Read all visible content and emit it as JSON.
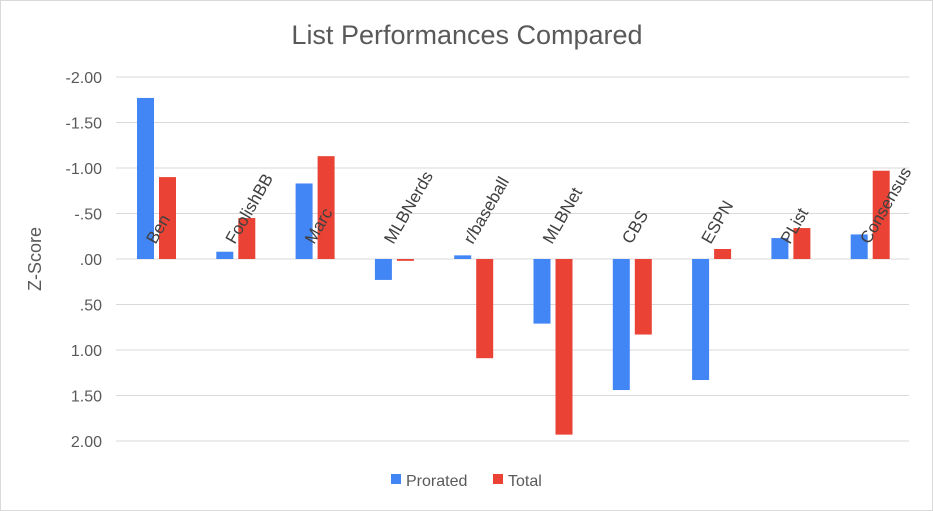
{
  "chart_data": {
    "type": "bar",
    "title": "List Performances Compared",
    "ylabel": "Z-Score",
    "xlabel": "",
    "y_axis_reversed": true,
    "ylim": [
      -2.0,
      2.0
    ],
    "yticks": [
      -2.0,
      -1.5,
      -1.0,
      -0.5,
      0.0,
      0.5,
      1.0,
      1.5,
      2.0
    ],
    "ytick_labels": [
      "-2.00",
      "-1.50",
      "-1.00",
      "-.50",
      ".00",
      ".50",
      "1.00",
      "1.50",
      "2.00"
    ],
    "grid": true,
    "legend_position": "bottom",
    "categories": [
      "Ben",
      "FoolishBB",
      "Marc",
      "MLBNerds",
      "r/baseball",
      "MLBNet",
      "CBS",
      "ESPN",
      "PList",
      "Consensus"
    ],
    "series": [
      {
        "name": "Prorated",
        "color": "#4285f4",
        "values": [
          -1.77,
          -0.08,
          -0.83,
          0.23,
          -0.04,
          0.71,
          1.44,
          1.33,
          -0.23,
          -0.27
        ]
      },
      {
        "name": "Total",
        "color": "#ea4335",
        "values": [
          -0.9,
          -0.45,
          -1.13,
          0.02,
          1.09,
          1.93,
          0.83,
          -0.11,
          -0.34,
          -0.97
        ]
      }
    ]
  }
}
